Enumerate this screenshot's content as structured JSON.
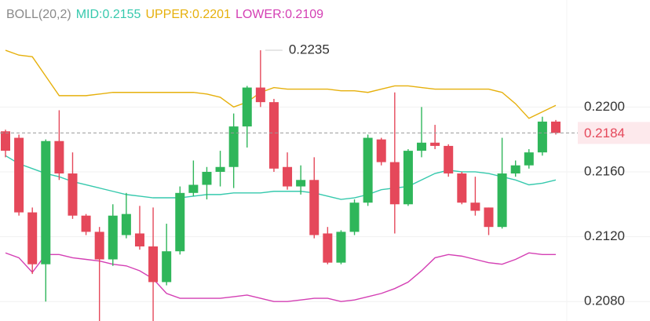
{
  "chart_data": {
    "type": "candlestick",
    "indicator": "BOLL(20,2)",
    "separator": ":",
    "up_color": "#2fb65a",
    "down_color": "#e5485a",
    "open": [
      0.2185,
      0.2181,
      0.2135,
      0.2103,
      0.2179,
      0.2159,
      0.2133,
      0.2123,
      0.2106,
      0.2121,
      0.2122,
      0.2114,
      0.2092,
      0.2111,
      0.2147,
      0.2152,
      0.216,
      0.2163,
      0.2188,
      0.2212,
      0.2203,
      0.2163,
      0.2151,
      0.2155,
      0.2122,
      0.2104,
      0.2123,
      0.2141,
      0.218,
      0.2166,
      0.214,
      0.2173,
      0.2178,
      0.2176,
      0.2159,
      0.2141,
      0.2138,
      0.2126,
      0.2159,
      0.2164,
      0.2172,
      0.2191
    ],
    "high": [
      0.2186,
      0.2183,
      0.2138,
      0.218,
      0.2198,
      0.2172,
      0.2134,
      0.2126,
      0.214,
      0.2147,
      0.2139,
      0.2138,
      0.2128,
      0.2151,
      0.2167,
      0.2163,
      0.2173,
      0.2196,
      0.2213,
      0.2235,
      0.2205,
      0.2172,
      0.2164,
      0.2169,
      0.2126,
      0.2124,
      0.2143,
      0.2183,
      0.2181,
      0.2209,
      0.2174,
      0.22,
      0.2189,
      0.2177,
      0.216,
      0.2157,
      0.2138,
      0.2181,
      0.2167,
      0.2174,
      0.2194,
      0.2192
    ],
    "low": [
      0.2169,
      0.2133,
      0.2097,
      0.208,
      0.2155,
      0.2131,
      0.2121,
      0.2068,
      0.2102,
      0.2119,
      0.2112,
      0.2068,
      0.209,
      0.2109,
      0.2145,
      0.2143,
      0.2151,
      0.215,
      0.2175,
      0.22,
      0.216,
      0.2149,
      0.2146,
      0.2119,
      0.2103,
      0.2103,
      0.2121,
      0.2139,
      0.2164,
      0.2122,
      0.2139,
      0.2169,
      0.2174,
      0.2157,
      0.214,
      0.2133,
      0.2121,
      0.2125,
      0.2157,
      0.2162,
      0.217,
      0.2183
    ],
    "close": [
      0.2173,
      0.2135,
      0.2103,
      0.2179,
      0.2159,
      0.2133,
      0.2123,
      0.2106,
      0.2133,
      0.2134,
      0.2114,
      0.2092,
      0.2111,
      0.2147,
      0.2152,
      0.216,
      0.2163,
      0.2188,
      0.2212,
      0.2203,
      0.2162,
      0.2151,
      0.2155,
      0.2121,
      0.2104,
      0.2123,
      0.2141,
      0.2181,
      0.2166,
      0.214,
      0.2173,
      0.2178,
      0.2176,
      0.2159,
      0.2141,
      0.2136,
      0.2126,
      0.2159,
      0.2164,
      0.2172,
      0.2191,
      0.2184
    ],
    "series": [
      {
        "name": "MID",
        "color": "#36c9ad",
        "values": [
          0.217,
          0.2165,
          0.2162,
          0.2159,
          0.2157,
          0.2154,
          0.2152,
          0.215,
          0.2148,
          0.2146,
          0.2145,
          0.2144,
          0.2144,
          0.2144,
          0.2145,
          0.2146,
          0.2146,
          0.2147,
          0.2147,
          0.2147,
          0.2148,
          0.2148,
          0.2148,
          0.2147,
          0.2145,
          0.2143,
          0.2144,
          0.2146,
          0.2149,
          0.215,
          0.2151,
          0.2155,
          0.2159,
          0.2161,
          0.216,
          0.216,
          0.2159,
          0.2157,
          0.2155,
          0.2152,
          0.2153,
          0.2155
        ]
      },
      {
        "name": "UPPER",
        "color": "#e6b00c",
        "values": [
          0.2235,
          0.2232,
          0.2231,
          0.2219,
          0.2207,
          0.2207,
          0.2207,
          0.2208,
          0.2209,
          0.2209,
          0.2209,
          0.2209,
          0.2209,
          0.2209,
          0.2209,
          0.2208,
          0.2206,
          0.22,
          0.2203,
          0.2209,
          0.2212,
          0.2211,
          0.2211,
          0.2211,
          0.2211,
          0.221,
          0.221,
          0.2209,
          0.2211,
          0.2213,
          0.2213,
          0.2212,
          0.2211,
          0.2211,
          0.2211,
          0.2211,
          0.2211,
          0.2209,
          0.2202,
          0.2193,
          0.2197,
          0.2201
        ]
      },
      {
        "name": "LOWER",
        "color": "#d43fb4",
        "values": [
          0.211,
          0.2107,
          0.2098,
          0.2109,
          0.2109,
          0.2107,
          0.2106,
          0.2105,
          0.2103,
          0.2102,
          0.2099,
          0.2094,
          0.2085,
          0.2082,
          0.2082,
          0.2082,
          0.2082,
          0.2083,
          0.2084,
          0.2082,
          0.208,
          0.208,
          0.2081,
          0.2082,
          0.2082,
          0.208,
          0.2081,
          0.2083,
          0.2085,
          0.2088,
          0.2092,
          0.2099,
          0.2107,
          0.2109,
          0.2108,
          0.2106,
          0.2104,
          0.2103,
          0.2106,
          0.211,
          0.2109,
          0.2109
        ]
      }
    ],
    "ylim": [
      0.2068,
      0.2266
    ],
    "yticks": [
      {
        "value": 0.208,
        "label": "0.2080"
      },
      {
        "value": 0.212,
        "label": "0.2120"
      },
      {
        "value": 0.216,
        "label": "0.2160"
      },
      {
        "value": 0.22,
        "label": "0.2200"
      }
    ],
    "grid": true
  }
}
